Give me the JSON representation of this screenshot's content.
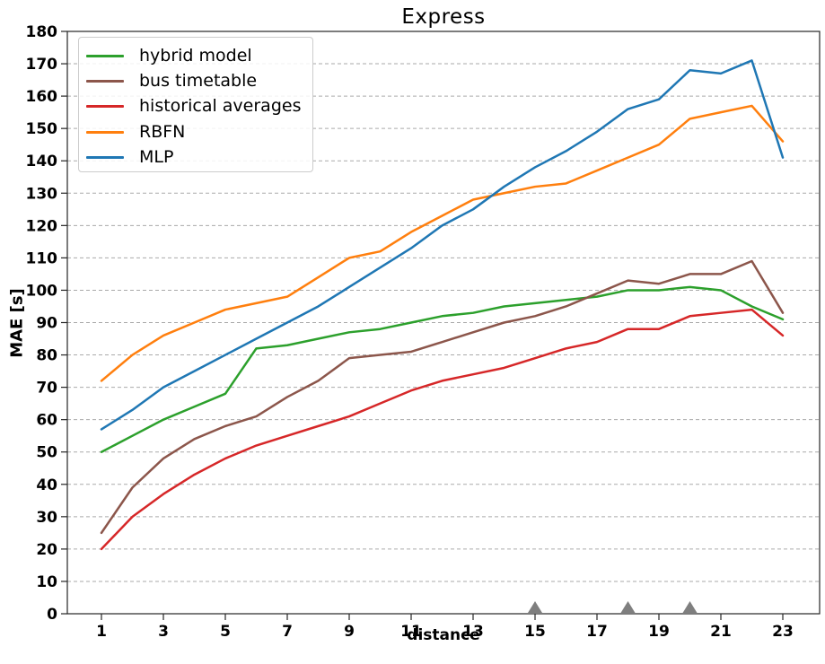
{
  "figure": {
    "title": "Express",
    "xlabel": "distance",
    "ylabel": "MAE [s]"
  },
  "chart_data": {
    "type": "line",
    "title": "Express",
    "xlabel": "distance",
    "ylabel": "MAE [s]",
    "x": [
      1,
      2,
      3,
      4,
      5,
      6,
      7,
      8,
      9,
      10,
      11,
      12,
      13,
      14,
      15,
      16,
      17,
      18,
      19,
      20,
      21,
      22,
      23
    ],
    "x_tick_labels": [
      1,
      3,
      5,
      7,
      9,
      11,
      13,
      15,
      17,
      19,
      21,
      23
    ],
    "y_ticks": [
      0,
      10,
      20,
      30,
      40,
      50,
      60,
      70,
      80,
      90,
      100,
      110,
      120,
      130,
      140,
      150,
      160,
      170,
      180
    ],
    "ylim": [
      0,
      180
    ],
    "grid": "horizontal-dashed",
    "legend_position": "upper-left",
    "series": [
      {
        "name": "hybrid model",
        "color": "#2ca02c",
        "values": [
          50,
          55,
          60,
          64,
          68,
          82,
          83,
          85,
          87,
          88,
          90,
          92,
          93,
          95,
          96,
          97,
          98,
          100,
          100,
          101,
          100,
          95,
          91
        ]
      },
      {
        "name": "bus timetable",
        "color": "#8c564b",
        "values": [
          25,
          39,
          48,
          54,
          58,
          61,
          67,
          72,
          79,
          80,
          81,
          84,
          87,
          90,
          92,
          95,
          99,
          103,
          102,
          105,
          105,
          109,
          93
        ]
      },
      {
        "name": "historical averages",
        "color": "#d62728",
        "values": [
          20,
          30,
          37,
          43,
          48,
          52,
          55,
          58,
          61,
          65,
          69,
          72,
          74,
          76,
          79,
          82,
          84,
          88,
          88,
          92,
          93,
          94,
          86
        ]
      },
      {
        "name": "RBFN",
        "color": "#ff7f0e",
        "values": [
          72,
          80,
          86,
          90,
          94,
          96,
          98,
          104,
          110,
          112,
          118,
          123,
          128,
          130,
          132,
          133,
          137,
          141,
          145,
          153,
          155,
          157,
          146
        ]
      },
      {
        "name": "MLP",
        "color": "#1f77b4",
        "values": [
          57,
          63,
          70,
          75,
          80,
          85,
          90,
          95,
          101,
          107,
          113,
          120,
          125,
          132,
          138,
          143,
          149,
          156,
          159,
          168,
          167,
          171,
          141
        ]
      }
    ],
    "axis_markers": {
      "shape": "triangle-up",
      "color": "#7f7f7f",
      "x_positions": [
        15,
        18,
        20
      ]
    },
    "grid_color": "#aaaaaa",
    "spine_color": "#262626"
  }
}
